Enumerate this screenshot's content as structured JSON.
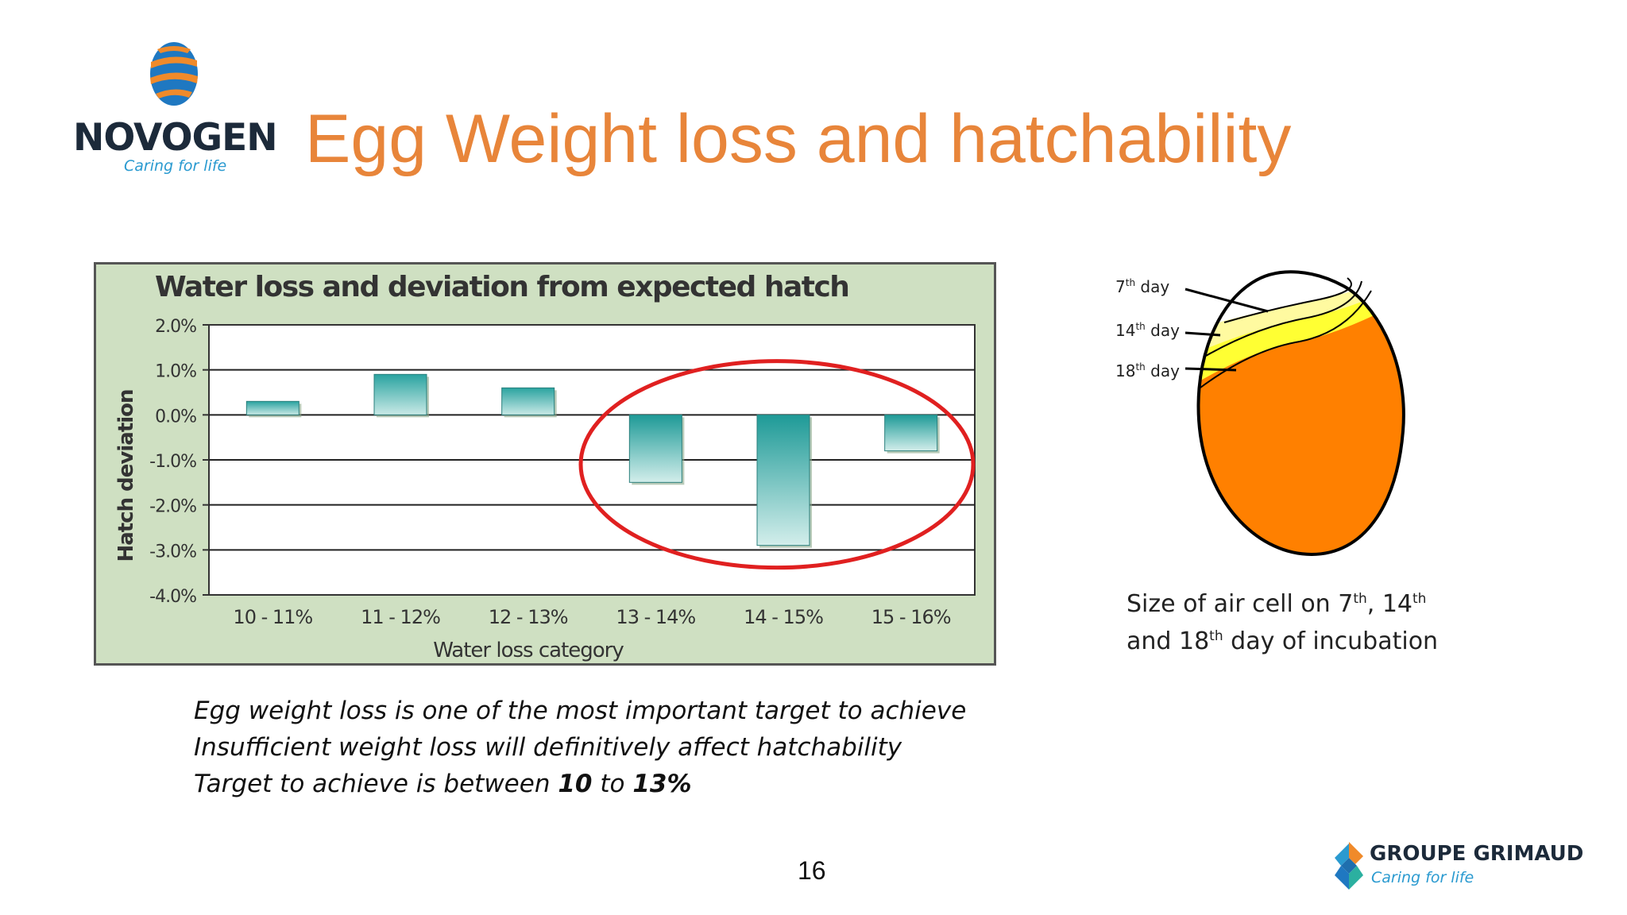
{
  "header": {
    "brand_name": "NOVOGEN",
    "brand_tagline": "Caring for life",
    "title": "Egg Weight loss and hatchability"
  },
  "chart_data": {
    "type": "bar",
    "title": "Water loss and deviation from expected hatch",
    "xlabel": "Water loss category",
    "ylabel": "Hatch deviation",
    "categories": [
      "10 - 11%",
      "11 - 12%",
      "12 - 13%",
      "13 - 14%",
      "14 - 15%",
      "15 - 16%"
    ],
    "values": [
      0.3,
      0.9,
      0.6,
      -1.5,
      -2.9,
      -0.8
    ],
    "yticks": [
      "2.0%",
      "1.0%",
      "0.0%",
      "-1.0%",
      "-2.0%",
      "-3.0%",
      "-4.0%"
    ],
    "ylim": [
      -4.0,
      2.0
    ],
    "grid": true,
    "bar_color": "#4fb3b0",
    "highlight": {
      "categories": [
        "13 - 14%",
        "14 - 15%",
        "15 - 16%"
      ],
      "color": "#e02020"
    }
  },
  "egg_diagram": {
    "labels": [
      {
        "base": "7",
        "sup": "th",
        "rest": " day"
      },
      {
        "base": "14",
        "sup": "th",
        "rest": " day"
      },
      {
        "base": "18",
        "sup": "th",
        "rest": " day"
      }
    ],
    "caption_line1": [
      "Size of air cell on 7",
      "th",
      ", 14",
      "th"
    ],
    "caption_line2": [
      "and 18",
      "th",
      " day of incubation"
    ],
    "colors": {
      "egg": "#ff8000",
      "cell_18": "#ffff33",
      "cell_14": "#fffaa0",
      "cell_7": "#ffffff"
    }
  },
  "body": {
    "line1": "Egg weight loss is one of the most important target to achieve",
    "line2": "Insufficient weight loss will definitively affect hatchability",
    "line3_a": "Target to achieve is between ",
    "line3_b": "10",
    "line3_c": " to ",
    "line3_d": "13%"
  },
  "footer": {
    "page_number": "16",
    "group_name": "GROUPE GRIMAUD",
    "group_tagline": "Caring for life"
  },
  "colors": {
    "title": "#e8853a",
    "accent_blue": "#2a9ad0"
  }
}
